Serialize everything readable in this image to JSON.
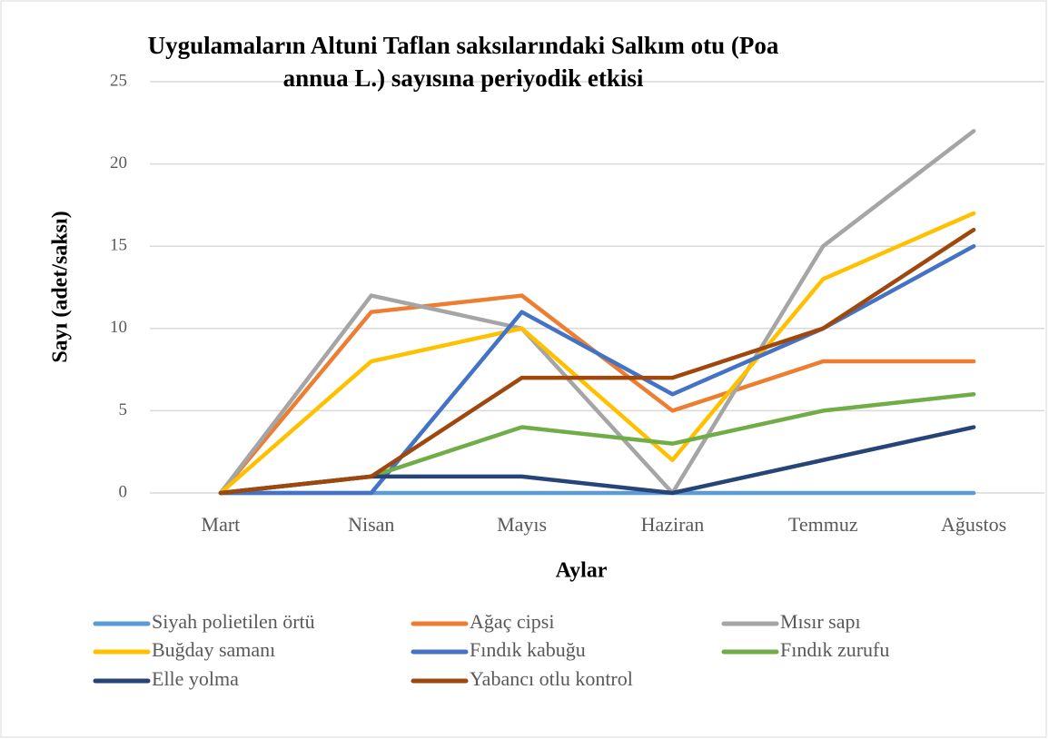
{
  "chart_data": {
    "type": "line",
    "title": "Uygulamaların Altuni Taflan saksılarındaki Salkım otu (Poa annua L.) sayısına periyodik etkisi",
    "x_label": "Aylar",
    "y_label": "Sayı (adet/saksı)",
    "categories": [
      "Mart",
      "Nisan",
      "Mayıs",
      "Haziran",
      "Temmuz",
      "Ağustos"
    ],
    "ylim": [
      0,
      25
    ],
    "yticks": [
      0,
      5,
      10,
      15,
      20,
      25
    ],
    "grid": true,
    "legend": "bottom",
    "series": [
      {
        "name": "Siyah polietilen örtü",
        "color": "#5b9bd5",
        "values": [
          0,
          0,
          0,
          0,
          0,
          0
        ]
      },
      {
        "name": "Ağaç cipsi",
        "color": "#ed7d31",
        "values": [
          0,
          11,
          12,
          5,
          8,
          8
        ]
      },
      {
        "name": "Mısır sapı",
        "color": "#a5a5a5",
        "values": [
          0,
          12,
          10,
          0,
          15,
          22
        ]
      },
      {
        "name": "Buğday samanı",
        "color": "#ffc000",
        "values": [
          0,
          8,
          10,
          2,
          13,
          17
        ]
      },
      {
        "name": "Fındık kabuğu",
        "color": "#4472c4",
        "values": [
          0,
          0,
          11,
          6,
          10,
          15
        ]
      },
      {
        "name": "Fındık zurufu",
        "color": "#70ad47",
        "values": [
          0,
          1,
          4,
          3,
          5,
          6
        ]
      },
      {
        "name": "Elle yolma",
        "color": "#264478",
        "values": [
          0,
          1,
          1,
          0,
          2,
          4
        ]
      },
      {
        "name": "Yabancı otlu kontrol",
        "color": "#9e480e",
        "values": [
          0,
          1,
          7,
          7,
          10,
          16
        ]
      }
    ]
  }
}
